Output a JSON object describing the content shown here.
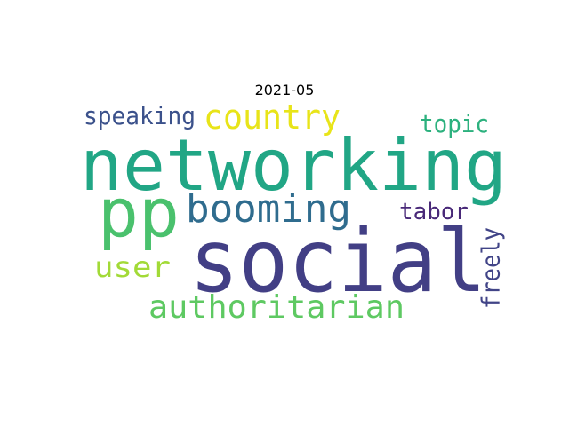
{
  "title": "2021-05",
  "words": [
    {
      "text": "networking",
      "color": "#21a685"
    },
    {
      "text": "social",
      "color": "#423f85"
    },
    {
      "text": "pp",
      "color": "#4ac16d"
    },
    {
      "text": "booming",
      "color": "#2f6c8e"
    },
    {
      "text": "country",
      "color": "#e8e419"
    },
    {
      "text": "speaking",
      "color": "#3b518b"
    },
    {
      "text": "user",
      "color": "#a2da37"
    },
    {
      "text": "authoritarian",
      "color": "#5ec962"
    },
    {
      "text": "topic",
      "color": "#2cb17e"
    },
    {
      "text": "tabor",
      "color": "#482878"
    },
    {
      "text": "freely",
      "color": "#414487"
    }
  ]
}
